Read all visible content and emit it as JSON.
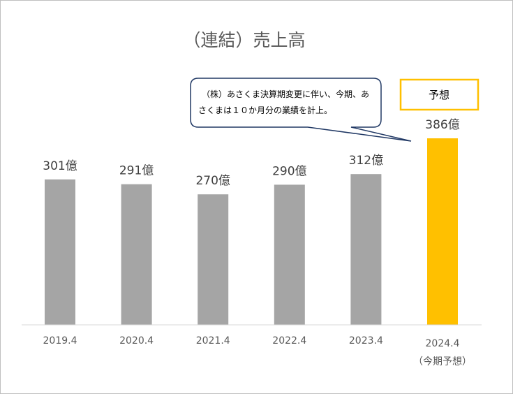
{
  "chart_data": {
    "type": "bar",
    "title": "（連結）売上高",
    "categories": [
      "2019.4",
      "2020.4",
      "2021.4",
      "2022.4",
      "2023.4",
      "2024.4"
    ],
    "category_sublabels": [
      "",
      "",
      "",
      "",
      "",
      "（今期予想）"
    ],
    "values": [
      301,
      291,
      270,
      290,
      312,
      386
    ],
    "value_labels": [
      "301億",
      "291億",
      "270億",
      "290億",
      "312億",
      "386億"
    ],
    "bar_colors": [
      "#a5a5a5",
      "#a5a5a5",
      "#a5a5a5",
      "#a5a5a5",
      "#a5a5a5",
      "#ffc000"
    ],
    "ylim": [
      0,
      386
    ],
    "grid": false,
    "annotations": {
      "callout_lines": [
        "（株）あさくま決算期変更に伴い、今期、あ",
        "さくまは１０か月分の業績を計上。"
      ],
      "forecast_badge": "予想"
    }
  }
}
